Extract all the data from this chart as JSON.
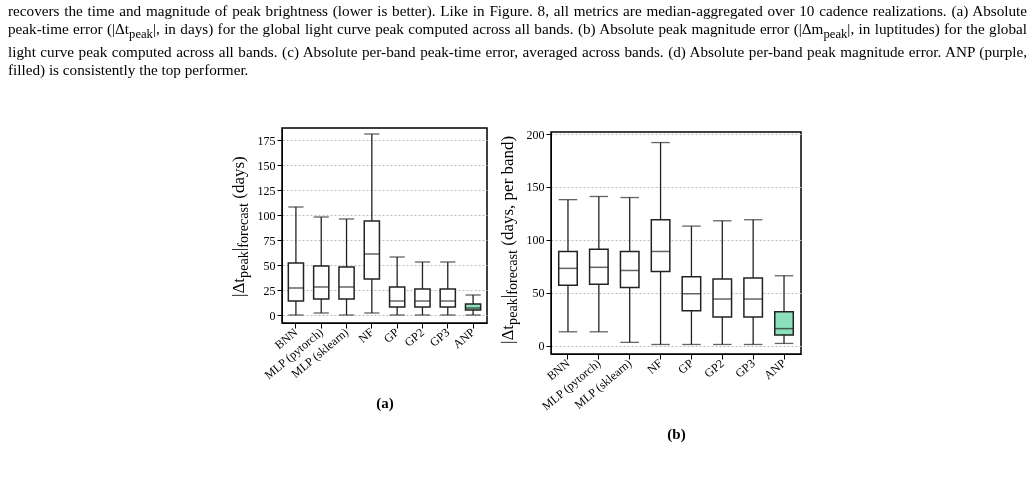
{
  "chart_data": [
    {
      "type": "other",
      "annotations": [
        "recovers the time and magnitude of peak brightness (lower is better). Like in Figure. 8, all metrics are median-aggregated over 10 cadence realizations. (a) Absolute peak-time error (|Δt$_{peak}$|, in days) for the global light curve peak computed across all bands. (b) Absolute peak magnitude error (|Δm$_{peak}$|, in luptitudes) for the global light curve peak computed across all bands. (c) Absolute per-band peak-time error, averaged across bands. (d) Absolute per-band peak magnitude error. ANP (purple, filled) is consistently the top performer."
      ]
    },
    {
      "type": "box",
      "xlabel": "(a)",
      "ylabel": "|Δt$_{peak}$|$_{forecast}$ (days)",
      "categories": [
        "BNN",
        "MLP (pytorch)",
        "MLP (sklearn)",
        "NF",
        "GP",
        "GP2",
        "GP3",
        "ANP"
      ],
      "colors": [
        "#ffffff",
        "#ffffff",
        "#ffffff",
        "#ffffff",
        "#ffffff",
        "#ffffff",
        "#ffffff",
        "#8de0bd"
      ],
      "boxes": [
        {
          "low": 0,
          "q1": 14,
          "median": 27,
          "q3": 52,
          "high": 108
        },
        {
          "low": 2,
          "q1": 16,
          "median": 28,
          "q3": 49,
          "high": 98
        },
        {
          "low": 0,
          "q1": 16,
          "median": 28,
          "q3": 48,
          "high": 96
        },
        {
          "low": 2,
          "q1": 36,
          "median": 61,
          "q3": 94,
          "high": 181
        },
        {
          "low": 0,
          "q1": 8,
          "median": 14,
          "q3": 28,
          "high": 58
        },
        {
          "low": 0,
          "q1": 8,
          "median": 14,
          "q3": 26,
          "high": 53
        },
        {
          "low": 0,
          "q1": 8,
          "median": 14,
          "q3": 26,
          "high": 53
        },
        {
          "low": 0,
          "q1": 5,
          "median": 7,
          "q3": 11,
          "high": 20
        }
      ],
      "ylim": [
        -8,
        187
      ],
      "yticks": [
        0,
        25,
        50,
        75,
        100,
        125,
        150,
        175
      ],
      "grid": "y"
    },
    {
      "type": "box",
      "xlabel": "(b)",
      "ylabel": "|Δt$_{peak}$|$_{forecast}$ (days, per band)",
      "categories": [
        "BNN",
        "MLP (pytorch)",
        "MLP (sklearn)",
        "NF",
        "GP",
        "GP2",
        "GP3",
        "ANP"
      ],
      "colors": [
        "#ffffff",
        "#ffffff",
        "#ffffff",
        "#ffffff",
        "#ffffff",
        "#ffffff",
        "#ffffff",
        "#8de0bd"
      ],
      "boxes": [
        {
          "low": 13,
          "q1": 57,
          "median": 73,
          "q3": 89,
          "high": 138
        },
        {
          "low": 13,
          "q1": 58,
          "median": 74,
          "q3": 91,
          "high": 141
        },
        {
          "low": 3,
          "q1": 55,
          "median": 71,
          "q3": 89,
          "high": 140
        },
        {
          "low": 1,
          "q1": 70,
          "median": 89,
          "q3": 119,
          "high": 192
        },
        {
          "low": 1,
          "q1": 33,
          "median": 49,
          "q3": 65,
          "high": 113
        },
        {
          "low": 1,
          "q1": 27,
          "median": 44,
          "q3": 63,
          "high": 118
        },
        {
          "low": 1,
          "q1": 27,
          "median": 44,
          "q3": 64,
          "high": 119
        },
        {
          "low": 2,
          "q1": 10,
          "median": 16,
          "q3": 32,
          "high": 66
        }
      ],
      "ylim": [
        -8,
        202
      ],
      "yticks": [
        0,
        50,
        100,
        150,
        200
      ],
      "grid": "y"
    }
  ]
}
